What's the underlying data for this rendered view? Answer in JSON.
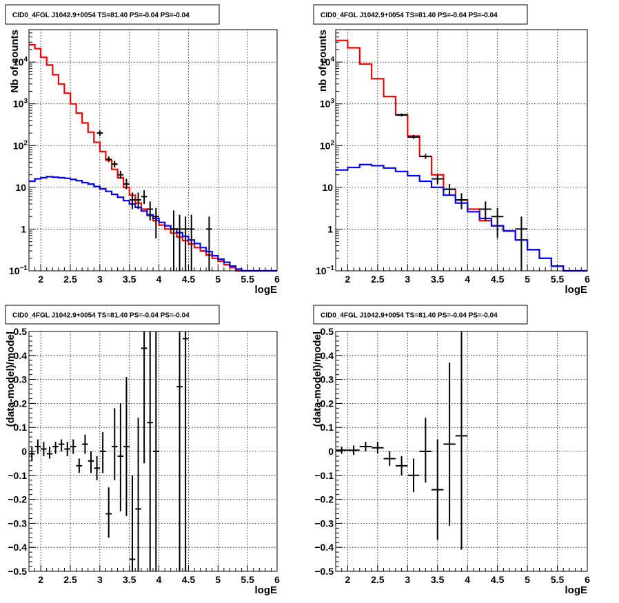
{
  "chart_data": [
    {
      "type": "step",
      "title": "CID0_4FGL J1042.9+0054 TS=81.40 PS=-0.04 PS=-0.04",
      "xlabel": "logE",
      "ylabel": "Nb of counts",
      "xlim": [
        1.8,
        6.0
      ],
      "ylim": [
        0.1,
        60000
      ],
      "yscale": "log",
      "x_ticks": [
        2,
        2.5,
        3,
        3.5,
        4,
        4.5,
        5,
        5.5,
        6
      ],
      "x_tick_labels": [
        "2",
        "2.5",
        "3",
        "3.5",
        "4",
        "4.5",
        "5",
        "5.5",
        "6"
      ],
      "y_ticks": [
        0.1,
        1,
        10,
        100,
        1000,
        10000
      ],
      "y_tick_labels": [
        [
          "10",
          "−1"
        ],
        [
          "1",
          ""
        ],
        [
          "10",
          ""
        ],
        [
          "10",
          "2"
        ],
        [
          "10",
          "3"
        ],
        [
          "10",
          "4"
        ]
      ],
      "grid": true,
      "bin_edges": [
        1.8,
        1.9,
        2.0,
        2.1,
        2.2,
        2.3,
        2.4,
        2.5,
        2.6,
        2.7,
        2.8,
        2.9,
        3.0,
        3.1,
        3.2,
        3.3,
        3.4,
        3.5,
        3.6,
        3.7,
        3.8,
        3.9,
        4.0,
        4.1,
        4.2,
        4.3,
        4.4,
        4.5,
        4.6,
        4.7,
        4.8,
        4.9,
        5.0,
        5.1,
        5.2,
        5.3,
        5.4,
        5.5,
        5.6,
        5.7,
        5.8,
        5.9,
        6.0
      ],
      "series": [
        {
          "color": "#ff0000",
          "values": [
            26000,
            21000,
            13000,
            8500,
            5000,
            3000,
            1800,
            1000,
            600,
            350,
            210,
            120,
            72,
            45,
            27,
            17,
            10,
            6.5,
            4.2,
            3.0,
            2.1,
            1.6,
            1.25,
            1.0,
            0.8,
            0.65,
            0.53,
            0.44,
            0.36,
            0.3,
            0.24,
            0.2,
            0.17,
            0.14,
            0.12,
            0.1,
            0.1,
            0.1,
            0.1,
            0.1,
            0.1,
            0.1
          ]
        },
        {
          "color": "#0000ff",
          "values": [
            14,
            16,
            17,
            18,
            17.5,
            17,
            16.5,
            15.5,
            14.5,
            13,
            12,
            10.5,
            9.2,
            8,
            6.8,
            5.8,
            4.8,
            4,
            3.3,
            2.7,
            2.2,
            1.8,
            1.45,
            1.2,
            1.0,
            0.82,
            0.67,
            0.55,
            0.45,
            0.36,
            0.29,
            0.23,
            0.19,
            0.16,
            0.13,
            0.11,
            0.1,
            0.1,
            0.1,
            0.1,
            0.1,
            0.1
          ]
        }
      ],
      "points": [
        {
          "x": 3.0,
          "y": 200,
          "ylo": 170,
          "yhi": 230,
          "xerr": 0.05
        },
        {
          "x": 3.15,
          "y": 47,
          "ylo": 40,
          "yhi": 55,
          "xerr": 0.05
        },
        {
          "x": 3.25,
          "y": 36,
          "ylo": 30,
          "yhi": 43,
          "xerr": 0.05
        },
        {
          "x": 3.35,
          "y": 20,
          "ylo": 16,
          "yhi": 25,
          "xerr": 0.05
        },
        {
          "x": 3.45,
          "y": 12,
          "ylo": 9,
          "yhi": 16,
          "xerr": 0.05
        },
        {
          "x": 3.55,
          "y": 5,
          "ylo": 3,
          "yhi": 7.5,
          "xerr": 0.05
        },
        {
          "x": 3.65,
          "y": 5,
          "ylo": 3,
          "yhi": 7.5,
          "xerr": 0.05
        },
        {
          "x": 3.75,
          "y": 6,
          "ylo": 4,
          "yhi": 8.5,
          "xerr": 0.05
        },
        {
          "x": 3.85,
          "y": 3,
          "ylo": 1.6,
          "yhi": 4.6,
          "xerr": 0.05
        },
        {
          "x": 3.95,
          "y": 2,
          "ylo": 0.6,
          "yhi": 3.2,
          "xerr": 0.05
        },
        {
          "x": 4.25,
          "y": 1,
          "ylo": 0.1,
          "yhi": 2.8,
          "xerr": 0.05
        },
        {
          "x": 4.35,
          "y": 1,
          "ylo": 0.1,
          "yhi": 2.2,
          "xerr": 0.05
        },
        {
          "x": 4.45,
          "y": 1,
          "ylo": 0.1,
          "yhi": 2.0,
          "xerr": 0.05
        },
        {
          "x": 4.55,
          "y": 1,
          "ylo": 0.1,
          "yhi": 2.2,
          "xerr": 0.05
        },
        {
          "x": 4.85,
          "y": 1,
          "ylo": 0.1,
          "yhi": 2.0,
          "xerr": 0.05
        }
      ]
    },
    {
      "type": "step",
      "title": "CID0_4FGL J1042.9+0054 TS=81.40 PS=-0.04 PS=-0.04",
      "xlabel": "logE",
      "ylabel": "nb of counts",
      "xlim": [
        1.8,
        6.0
      ],
      "ylim": [
        0.1,
        60000
      ],
      "yscale": "log",
      "x_ticks": [
        2,
        2.5,
        3,
        3.5,
        4,
        4.5,
        5,
        5.5,
        6
      ],
      "x_tick_labels": [
        "2",
        "2.5",
        "3",
        "3.5",
        "4",
        "4.5",
        "5",
        "5.5",
        "6"
      ],
      "y_ticks": [
        0.1,
        1,
        10,
        100,
        1000,
        10000
      ],
      "y_tick_labels": [
        [
          "10",
          "−1"
        ],
        [
          "1",
          ""
        ],
        [
          "10",
          ""
        ],
        [
          "10",
          "2"
        ],
        [
          "10",
          "3"
        ],
        [
          "10",
          "4"
        ]
      ],
      "grid": true,
      "bin_edges": [
        1.8,
        2.0,
        2.2,
        2.4,
        2.6,
        2.8,
        3.0,
        3.2,
        3.4,
        3.6,
        3.8,
        4.0,
        4.2,
        4.4,
        4.6,
        4.8,
        5.0,
        5.2,
        5.4,
        5.6,
        5.8,
        6.0
      ],
      "series": [
        {
          "color": "#ff0000",
          "values": [
            33000,
            22000,
            9000,
            4000,
            1500,
            550,
            170,
            55,
            20,
            9,
            5,
            3,
            1.6,
            1.2,
            0.9,
            0.55,
            0.32,
            0.2,
            0.13,
            0.1,
            0.1
          ]
        },
        {
          "color": "#0000ff",
          "values": [
            26,
            30,
            35,
            33,
            29,
            24,
            19,
            14,
            10,
            6.5,
            4.2,
            2.6,
            1.8,
            1.2,
            0.9,
            0.55,
            0.32,
            0.2,
            0.13,
            0.1,
            0.1
          ]
        }
      ],
      "points": [
        {
          "x": 2.9,
          "y": 540,
          "ylo": 500,
          "yhi": 590,
          "xerr": 0.1
        },
        {
          "x": 3.1,
          "y": 160,
          "ylo": 145,
          "yhi": 180,
          "xerr": 0.1
        },
        {
          "x": 3.3,
          "y": 55,
          "ylo": 48,
          "yhi": 63,
          "xerr": 0.1
        },
        {
          "x": 3.5,
          "y": 16,
          "ylo": 12,
          "yhi": 20,
          "xerr": 0.1
        },
        {
          "x": 3.7,
          "y": 9,
          "ylo": 6.5,
          "yhi": 12,
          "xerr": 0.1
        },
        {
          "x": 3.9,
          "y": 5,
          "ylo": 3,
          "yhi": 7.2,
          "xerr": 0.1
        },
        {
          "x": 4.3,
          "y": 3,
          "ylo": 1.6,
          "yhi": 4.6,
          "xerr": 0.1
        },
        {
          "x": 4.5,
          "y": 2,
          "ylo": 0.6,
          "yhi": 3.2,
          "xerr": 0.1
        },
        {
          "x": 4.9,
          "y": 1,
          "ylo": 0.1,
          "yhi": 2.0,
          "xerr": 0.1
        }
      ]
    },
    {
      "type": "scatter",
      "title": "CID0_4FGL J1042.9+0054 TS=81.40 PS=-0.04 PS=-0.04",
      "xlabel": "logE",
      "ylabel": "(data-model)/model",
      "xlim": [
        1.8,
        6.0
      ],
      "ylim": [
        -0.5,
        0.5
      ],
      "x_ticks": [
        2,
        2.5,
        3,
        3.5,
        4,
        4.5,
        5,
        5.5,
        6
      ],
      "x_tick_labels": [
        "2",
        "2.5",
        "3",
        "3.5",
        "4",
        "4.5",
        "5",
        "5.5",
        "6"
      ],
      "y_ticks": [
        -0.5,
        -0.4,
        -0.3,
        -0.2,
        -0.1,
        0,
        0.1,
        0.2,
        0.3,
        0.4,
        0.5
      ],
      "y_tick_labels": [
        "−0.5",
        "−0.4",
        "−0.3",
        "−0.2",
        "−0.1",
        "0",
        "0.1",
        "0.2",
        "0.3",
        "0.4",
        "0.5"
      ],
      "grid": true,
      "points": [
        {
          "x": 1.85,
          "y": -0.01,
          "ylo": -0.04,
          "yhi": 0.02,
          "xerr": 0.05
        },
        {
          "x": 1.95,
          "y": 0.02,
          "ylo": -0.01,
          "yhi": 0.05,
          "xerr": 0.05
        },
        {
          "x": 2.05,
          "y": 0.01,
          "ylo": -0.02,
          "yhi": 0.04,
          "xerr": 0.05
        },
        {
          "x": 2.15,
          "y": -0.01,
          "ylo": -0.03,
          "yhi": 0.02,
          "xerr": 0.05
        },
        {
          "x": 2.25,
          "y": 0.02,
          "ylo": -0.01,
          "yhi": 0.04,
          "xerr": 0.05
        },
        {
          "x": 2.35,
          "y": 0.03,
          "ylo": 0.0,
          "yhi": 0.05,
          "xerr": 0.05
        },
        {
          "x": 2.45,
          "y": 0.01,
          "ylo": -0.02,
          "yhi": 0.04,
          "xerr": 0.05
        },
        {
          "x": 2.55,
          "y": 0.02,
          "ylo": -0.01,
          "yhi": 0.05,
          "xerr": 0.05
        },
        {
          "x": 2.65,
          "y": -0.06,
          "ylo": -0.09,
          "yhi": -0.03,
          "xerr": 0.05
        },
        {
          "x": 2.75,
          "y": 0.03,
          "ylo": -0.01,
          "yhi": 0.07,
          "xerr": 0.05
        },
        {
          "x": 2.85,
          "y": -0.04,
          "ylo": -0.09,
          "yhi": 0.0,
          "xerr": 0.05
        },
        {
          "x": 2.95,
          "y": -0.07,
          "ylo": -0.12,
          "yhi": -0.02,
          "xerr": 0.05
        },
        {
          "x": 3.05,
          "y": 0.0,
          "ylo": -0.09,
          "yhi": 0.08,
          "xerr": 0.05
        },
        {
          "x": 3.15,
          "y": -0.26,
          "ylo": -0.36,
          "yhi": -0.15,
          "xerr": 0.05
        },
        {
          "x": 3.25,
          "y": 0.02,
          "ylo": -0.12,
          "yhi": 0.18,
          "xerr": 0.05
        },
        {
          "x": 3.35,
          "y": -0.02,
          "ylo": -0.25,
          "yhi": 0.2,
          "xerr": 0.05
        },
        {
          "x": 3.45,
          "y": 0.02,
          "ylo": -0.27,
          "yhi": 0.31,
          "xerr": 0.05
        },
        {
          "x": 3.55,
          "y": -0.45,
          "ylo": -0.5,
          "yhi": -0.1,
          "xerr": 0.05
        },
        {
          "x": 3.65,
          "y": -0.24,
          "ylo": -0.5,
          "yhi": 0.14,
          "xerr": 0.05
        },
        {
          "x": 3.75,
          "y": 0.43,
          "ylo": -0.05,
          "yhi": 0.5,
          "xerr": 0.05
        },
        {
          "x": 3.85,
          "y": 0.12,
          "ylo": -0.5,
          "yhi": 0.5,
          "xerr": 0.05
        },
        {
          "x": 3.95,
          "y": 0.0,
          "ylo": -0.5,
          "yhi": 0.5,
          "xerr": 0.05
        },
        {
          "x": 4.35,
          "y": 0.27,
          "ylo": -0.5,
          "yhi": 0.5,
          "xerr": 0.05
        },
        {
          "x": 4.45,
          "y": 0.47,
          "ylo": -0.5,
          "yhi": 0.5,
          "xerr": 0.05
        }
      ]
    },
    {
      "type": "scatter",
      "title": "CID0_4FGL J1042.9+0054 TS=81.40 PS=-0.04 PS=-0.04",
      "xlabel": "logE",
      "ylabel": "(data-model)/model",
      "xlim": [
        1.8,
        6.0
      ],
      "ylim": [
        -0.5,
        0.5
      ],
      "x_ticks": [
        2,
        2.5,
        3,
        3.5,
        4,
        4.5,
        5,
        5.5,
        6
      ],
      "x_tick_labels": [
        "2",
        "2.5",
        "3",
        "3.5",
        "4",
        "4.5",
        "5",
        "5.5",
        "6"
      ],
      "y_ticks": [
        -0.5,
        -0.4,
        -0.3,
        -0.2,
        -0.1,
        0,
        0.1,
        0.2,
        0.3,
        0.4,
        0.5
      ],
      "y_tick_labels": [
        "−0.5",
        "−0.4",
        "−0.3",
        "−0.2",
        "−0.1",
        "0",
        "0.1",
        "0.2",
        "0.3",
        "0.4",
        "0.5"
      ],
      "grid": true,
      "points": [
        {
          "x": 1.9,
          "y": 0.005,
          "ylo": -0.01,
          "yhi": 0.02,
          "xerr": 0.1
        },
        {
          "x": 2.1,
          "y": 0.005,
          "ylo": -0.015,
          "yhi": 0.025,
          "xerr": 0.1
        },
        {
          "x": 2.3,
          "y": 0.02,
          "ylo": 0.0,
          "yhi": 0.04,
          "xerr": 0.1
        },
        {
          "x": 2.5,
          "y": 0.015,
          "ylo": -0.01,
          "yhi": 0.04,
          "xerr": 0.1
        },
        {
          "x": 2.7,
          "y": -0.03,
          "ylo": -0.06,
          "yhi": 0.0,
          "xerr": 0.1
        },
        {
          "x": 2.9,
          "y": -0.06,
          "ylo": -0.1,
          "yhi": -0.02,
          "xerr": 0.1
        },
        {
          "x": 3.1,
          "y": -0.1,
          "ylo": -0.17,
          "yhi": -0.03,
          "xerr": 0.1
        },
        {
          "x": 3.3,
          "y": 0.0,
          "ylo": -0.13,
          "yhi": 0.14,
          "xerr": 0.1
        },
        {
          "x": 3.5,
          "y": -0.16,
          "ylo": -0.37,
          "yhi": 0.05,
          "xerr": 0.1
        },
        {
          "x": 3.7,
          "y": 0.03,
          "ylo": -0.31,
          "yhi": 0.37,
          "xerr": 0.1
        },
        {
          "x": 3.9,
          "y": 0.065,
          "ylo": -0.41,
          "yhi": 0.5,
          "xerr": 0.1
        }
      ]
    }
  ]
}
